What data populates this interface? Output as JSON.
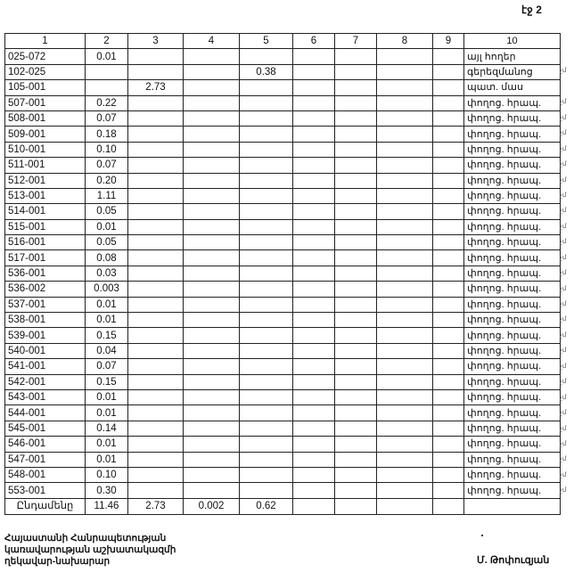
{
  "page_label": "էջ 2",
  "table": {
    "headers": [
      "1",
      "2",
      "3",
      "4",
      "5",
      "6",
      "7",
      "8",
      "9",
      "10"
    ],
    "rows": [
      [
        "025-072",
        "0.01",
        "",
        "",
        "",
        "",
        "",
        "",
        "",
        "այլ հողեր"
      ],
      [
        "102-025",
        "",
        "",
        "",
        "0.38",
        "",
        "",
        "",
        "",
        "գերեզմանոց"
      ],
      [
        "105-001",
        "",
        "2.73",
        "",
        "",
        "",
        "",
        "",
        "",
        "պատ. մաս"
      ],
      [
        "507-001",
        "0.22",
        "",
        "",
        "",
        "",
        "",
        "",
        "",
        "փողոց. հրապ."
      ],
      [
        "508-001",
        "0.07",
        "",
        "",
        "",
        "",
        "",
        "",
        "",
        "փողոց. հրապ."
      ],
      [
        "509-001",
        "0.18",
        "",
        "",
        "",
        "",
        "",
        "",
        "",
        "փողոց. հրապ."
      ],
      [
        "510-001",
        "0.10",
        "",
        "",
        "",
        "",
        "",
        "",
        "",
        "փողոց. հրապ."
      ],
      [
        "511-001",
        "0.07",
        "",
        "",
        "",
        "",
        "",
        "",
        "",
        "փողոց. հրապ."
      ],
      [
        "512-001",
        "0.20",
        "",
        "",
        "",
        "",
        "",
        "",
        "",
        "փողոց. հրապ."
      ],
      [
        "513-001",
        "1.11",
        "",
        "",
        "",
        "",
        "",
        "",
        "",
        "փողոց. հրապ."
      ],
      [
        "514-001",
        "0.05",
        "",
        "",
        "",
        "",
        "",
        "",
        "",
        "փողոց. հրապ."
      ],
      [
        "515-001",
        "0.01",
        "",
        "",
        "",
        "",
        "",
        "",
        "",
        "փողոց. հրապ."
      ],
      [
        "516-001",
        "0.05",
        "",
        "",
        "",
        "",
        "",
        "",
        "",
        "փողոց. հրապ."
      ],
      [
        "517-001",
        "0.08",
        "",
        "",
        "",
        "",
        "",
        "",
        "",
        "փողոց. հրապ."
      ],
      [
        "536-001",
        "0.03",
        "",
        "",
        "",
        "",
        "",
        "",
        "",
        "փողոց. հրապ."
      ],
      [
        "536-002",
        "0.003",
        "",
        "",
        "",
        "",
        "",
        "",
        "",
        "փողոց. հրապ."
      ],
      [
        "537-001",
        "0.01",
        "",
        "",
        "",
        "",
        "",
        "",
        "",
        "փողոց. հրապ."
      ],
      [
        "538-001",
        "0.01",
        "",
        "",
        "",
        "",
        "",
        "",
        "",
        "փողոց. հրապ."
      ],
      [
        "539-001",
        "0.15",
        "",
        "",
        "",
        "",
        "",
        "",
        "",
        "փողոց. հրապ."
      ],
      [
        "540-001",
        "0.04",
        "",
        "",
        "",
        "",
        "",
        "",
        "",
        "փողոց. հրապ."
      ],
      [
        "541-001",
        "0.07",
        "",
        "",
        "",
        "",
        "",
        "",
        "",
        "փողոց. հրապ."
      ],
      [
        "542-001",
        "0.15",
        "",
        "",
        "",
        "",
        "",
        "",
        "",
        "փողոց. հրապ."
      ],
      [
        "543-001",
        "0.01",
        "",
        "",
        "",
        "",
        "",
        "",
        "",
        "փողոց. հրապ."
      ],
      [
        "544-001",
        "0.01",
        "",
        "",
        "",
        "",
        "",
        "",
        "",
        "փողոց. հրապ."
      ],
      [
        "545-001",
        "0.14",
        "",
        "",
        "",
        "",
        "",
        "",
        "",
        "փողոց. հրապ."
      ],
      [
        "546-001",
        "0.01",
        "",
        "",
        "",
        "",
        "",
        "",
        "",
        "փողոց. հրապ."
      ],
      [
        "547-001",
        "0.01",
        "",
        "",
        "",
        "",
        "",
        "",
        "",
        "փողոց. հրապ."
      ],
      [
        "548-001",
        "0.10",
        "",
        "",
        "",
        "",
        "",
        "",
        "",
        "փողոց. հրապ."
      ],
      [
        "553-001",
        "0.30",
        "",
        "",
        "",
        "",
        "",
        "",
        "",
        "փողոց. հրապ."
      ]
    ],
    "total": [
      "Ընդամենը",
      "11.46",
      "2.73",
      "0.002",
      "0.62",
      "",
      "",
      "",
      "",
      ""
    ]
  },
  "margin_marks": [
    "",
    "չմ",
    "",
    "չմ",
    "չմ",
    "չմ",
    "չմ",
    "չմ",
    "չմ",
    "չմ",
    "չմ",
    "չմ",
    "չմ",
    "չմ",
    "չմ",
    "չմ",
    "չմ",
    "չմ",
    "չմ",
    "չմ",
    "չմ",
    "չմ",
    "չմ",
    "չմ",
    "չմ",
    "չմ",
    "չմ",
    "չմ",
    "չմ"
  ],
  "footer": {
    "line1": "Հայաստանի Հանրապետության",
    "line2": "կառավարության աշխատակազմի",
    "line3": "ղեկավար-նախարար",
    "signature": "Մ. Թոփուզյան"
  }
}
